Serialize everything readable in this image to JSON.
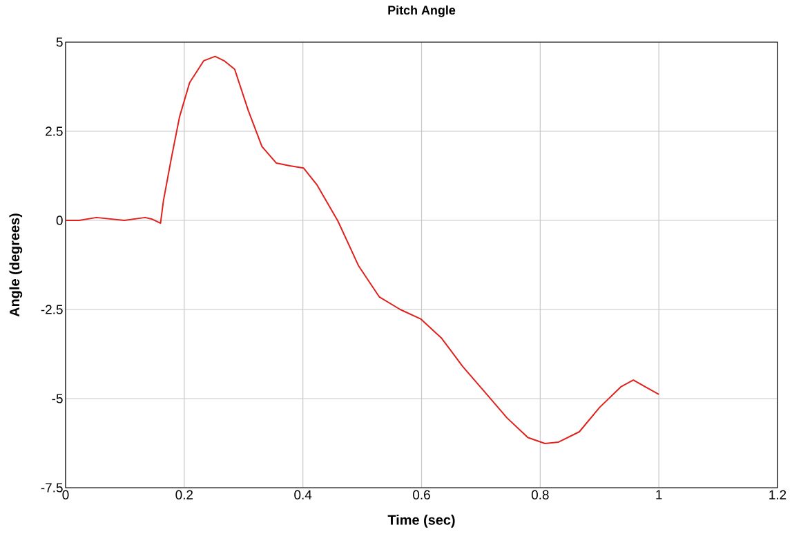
{
  "chart_data": {
    "type": "line",
    "title": "Pitch Angle",
    "xlabel": "Time (sec)",
    "ylabel": "Angle (degrees)",
    "x": [
      0,
      0.023,
      0.052,
      0.099,
      0.134,
      0.145,
      0.16,
      0.165,
      0.178,
      0.192,
      0.209,
      0.233,
      0.252,
      0.267,
      0.285,
      0.308,
      0.331,
      0.355,
      0.378,
      0.401,
      0.424,
      0.459,
      0.494,
      0.529,
      0.564,
      0.599,
      0.634,
      0.669,
      0.709,
      0.744,
      0.779,
      0.808,
      0.831,
      0.866,
      0.9,
      0.936,
      0.957,
      0.977,
      1.0
    ],
    "series": [
      {
        "color": "#e0201c",
        "values": [
          0,
          0,
          0.08,
          0,
          0.08,
          0.04,
          -0.08,
          0.56,
          1.72,
          2.9,
          3.86,
          4.48,
          4.6,
          4.48,
          4.24,
          3.08,
          2.07,
          1.61,
          1.53,
          1.47,
          0.99,
          -0.02,
          -1.28,
          -2.15,
          -2.5,
          -2.77,
          -3.31,
          -4.09,
          -4.86,
          -5.54,
          -6.09,
          -6.26,
          -6.22,
          -5.93,
          -5.25,
          -4.67,
          -4.48,
          -4.67,
          -4.88
        ]
      }
    ],
    "xlim": [
      0,
      1.2
    ],
    "ylim": [
      -7.5,
      5
    ],
    "xticks": [
      0,
      0.2,
      0.4,
      0.6,
      0.8,
      1,
      1.2
    ],
    "yticks": [
      -7.5,
      -5,
      -2.5,
      0,
      2.5,
      5
    ],
    "grid": true,
    "marker": "none",
    "line_style": "solid"
  }
}
